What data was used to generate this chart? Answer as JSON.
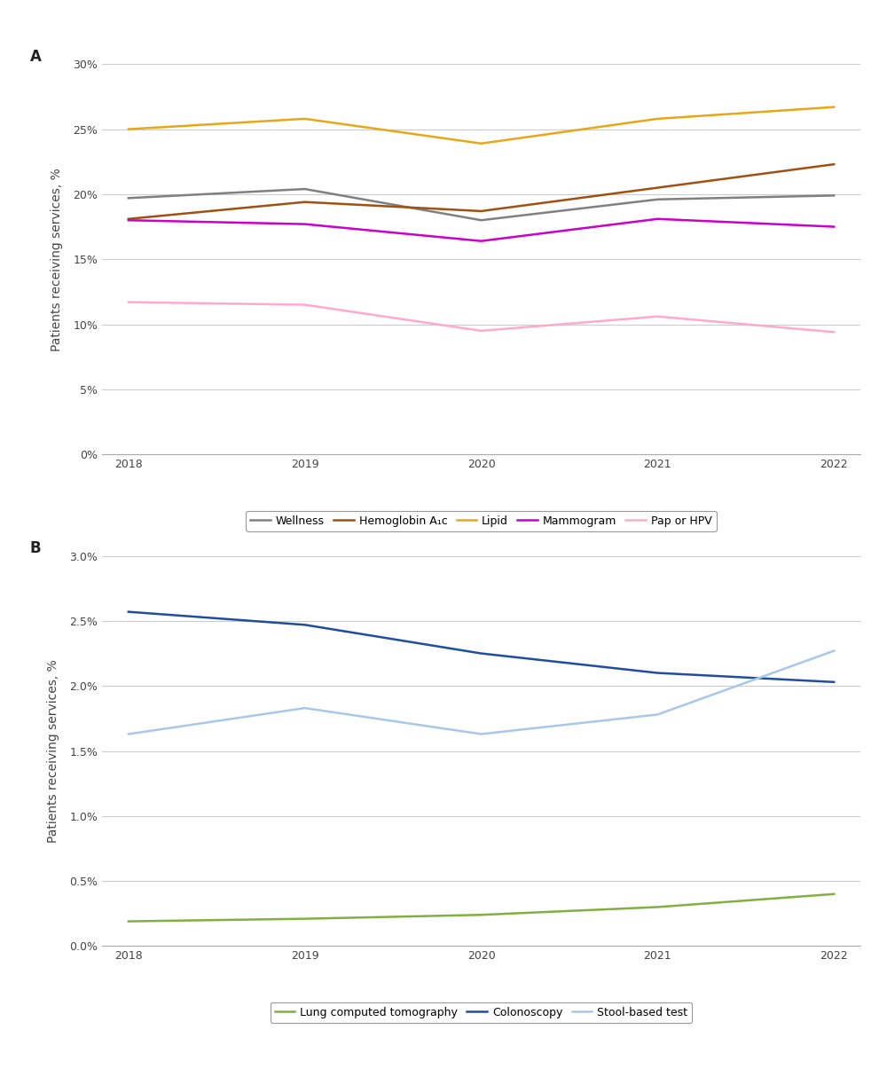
{
  "years": [
    2018,
    2019,
    2020,
    2021,
    2022
  ],
  "panel_A": {
    "wellness": [
      19.7,
      20.4,
      18.0,
      19.6,
      19.9
    ],
    "hemoglobin": [
      18.1,
      19.4,
      18.7,
      20.5,
      22.3
    ],
    "lipid": [
      25.0,
      25.8,
      23.9,
      25.8,
      26.7
    ],
    "mammogram": [
      18.0,
      17.7,
      16.4,
      18.1,
      17.5
    ],
    "pap_hpv": [
      11.7,
      11.5,
      9.5,
      10.6,
      9.4
    ],
    "colors": {
      "wellness": "#808080",
      "hemoglobin": "#a05010",
      "lipid": "#e6a817",
      "mammogram": "#cc00cc",
      "pap_hpv": "#ffaacc"
    },
    "labels": {
      "wellness": "Wellness",
      "hemoglobin": "Hemoglobin A₁c",
      "lipid": "Lipid",
      "mammogram": "Mammogram",
      "pap_hpv": "Pap or HPV"
    },
    "yticks": [
      0,
      5,
      10,
      15,
      20,
      25,
      30
    ],
    "ylim": [
      0,
      30
    ],
    "ylabel": "Patients receiving services, %"
  },
  "panel_B": {
    "lung_ct": [
      0.19,
      0.21,
      0.24,
      0.3,
      0.4
    ],
    "colonoscopy": [
      2.57,
      2.47,
      2.25,
      2.1,
      2.03
    ],
    "stool": [
      1.63,
      1.83,
      1.63,
      1.78,
      2.27
    ],
    "colors": {
      "lung_ct": "#82b040",
      "colonoscopy": "#1f4e9e",
      "stool": "#a8c8e8"
    },
    "labels": {
      "lung_ct": "Lung computed tomography",
      "colonoscopy": "Colonoscopy",
      "stool": "Stool-based test"
    },
    "yticks": [
      0.0,
      0.5,
      1.0,
      1.5,
      2.0,
      2.5,
      3.0
    ],
    "ylim": [
      0,
      3.0
    ],
    "ylabel": "Patients receiving services, %"
  },
  "background_color": "#ffffff",
  "grid_color": "#cccccc",
  "tick_color": "#444444",
  "linewidth": 1.8,
  "legend_fontsize": 9,
  "axis_label_fontsize": 10,
  "tick_fontsize": 9,
  "panel_label_fontsize": 12
}
